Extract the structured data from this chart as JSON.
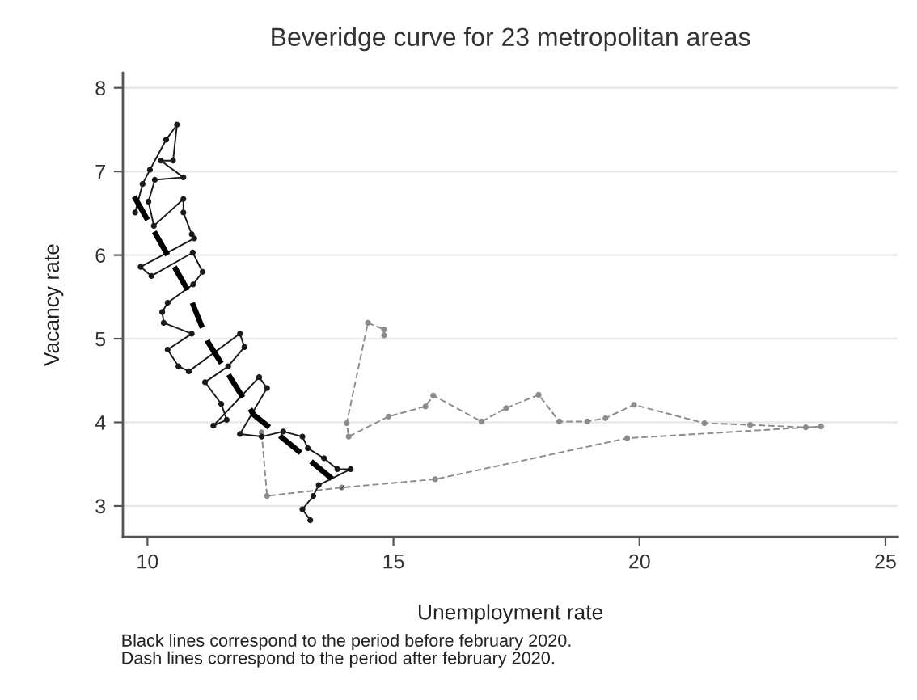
{
  "chart_data": {
    "type": "line",
    "title": "Beveridge curve for 23 metropolitan areas",
    "xlabel": "Unemployment rate",
    "ylabel": "Vacancy rate",
    "xlim": [
      9.5,
      25.25
    ],
    "ylim": [
      2.63,
      8.18
    ],
    "xticks": [
      10,
      15,
      20,
      25
    ],
    "yticks": [
      3,
      4,
      5,
      6,
      7,
      8
    ],
    "grid": "y",
    "annotations": [
      "Black lines correspond to the period before february 2020.",
      "Dash lines correspond to the period after february 2020."
    ],
    "series": [
      {
        "color": "#8c8c8c",
        "marker": "circle",
        "line_style": "dashed",
        "x": [
          12.32,
          12.43,
          13.95,
          15.85,
          19.75,
          23.69,
          23.38,
          22.25,
          21.32,
          19.89,
          19.31,
          18.94,
          18.37,
          17.95,
          17.29,
          16.79,
          15.81,
          15.65,
          14.9,
          14.09,
          14.05,
          14.48,
          14.81,
          14.81
        ],
        "values": [
          3.88,
          3.12,
          3.22,
          3.32,
          3.81,
          3.95,
          3.94,
          3.97,
          3.99,
          4.21,
          4.05,
          4.01,
          4.01,
          4.33,
          4.17,
          4.01,
          4.32,
          4.19,
          4.07,
          3.83,
          3.99,
          5.19,
          5.11,
          5.04
        ]
      },
      {
        "color": "#1a1a1a",
        "marker": "circle",
        "line_style": "solid",
        "x": [
          9.75,
          9.9,
          10.05,
          10.38,
          10.6,
          10.52,
          10.27,
          10.73,
          10.15,
          10.02,
          10.13,
          10.73,
          10.73,
          10.9,
          10.95,
          9.86,
          10.08,
          10.92,
          11.12,
          10.93,
          10.41,
          10.3,
          10.33,
          10.9,
          10.41,
          10.63,
          10.84,
          11.88,
          11.97,
          11.64,
          11.17,
          11.5,
          11.61,
          11.34,
          12.27,
          12.43,
          11.88,
          12.32,
          12.76,
          13.15,
          13.26,
          13.59,
          13.86,
          14.13,
          13.48,
          13.37,
          13.15,
          13.31
        ],
        "values": [
          6.51,
          6.85,
          7.02,
          7.38,
          7.56,
          7.13,
          7.13,
          6.93,
          6.9,
          6.64,
          6.35,
          6.67,
          6.51,
          6.25,
          6.2,
          5.86,
          5.75,
          6.03,
          5.8,
          5.65,
          5.43,
          5.32,
          5.19,
          5.06,
          4.87,
          4.67,
          4.61,
          5.06,
          4.9,
          4.67,
          4.48,
          4.22,
          4.03,
          3.96,
          4.54,
          4.41,
          3.86,
          3.83,
          3.89,
          3.83,
          3.69,
          3.57,
          3.44,
          3.44,
          3.25,
          3.12,
          2.96,
          2.83
        ]
      },
      {
        "color": "#000000",
        "marker": "none",
        "line_style": "dashed",
        "x": [
          9.73,
          10.79,
          11.23,
          12.16,
          12.71,
          13.97
        ],
        "values": [
          6.7,
          5.61,
          4.96,
          4.09,
          3.83,
          3.22
        ]
      }
    ]
  }
}
